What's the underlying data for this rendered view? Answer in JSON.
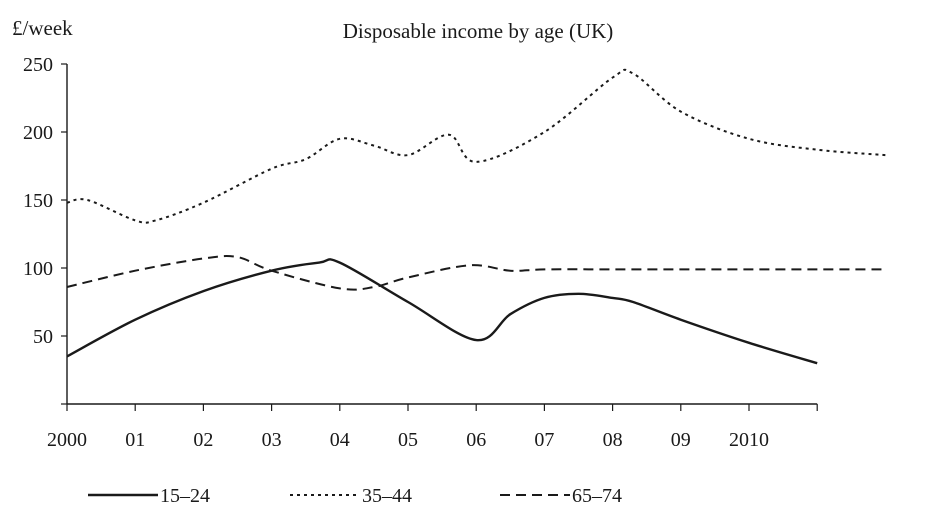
{
  "chart_data": {
    "type": "line",
    "title": "Disposable income by age (UK)",
    "ylabel": "£/week",
    "xlabel": "",
    "ylim": [
      0,
      250
    ],
    "xlim": [
      2000,
      2012
    ],
    "y_ticks": [
      50,
      100,
      150,
      200,
      250
    ],
    "x_ticks": [
      {
        "value": 2000,
        "label": "2000"
      },
      {
        "value": 2001,
        "label": "01"
      },
      {
        "value": 2002,
        "label": "02"
      },
      {
        "value": 2003,
        "label": "03"
      },
      {
        "value": 2004,
        "label": "04"
      },
      {
        "value": 2005,
        "label": "05"
      },
      {
        "value": 2006,
        "label": "06"
      },
      {
        "value": 2007,
        "label": "07"
      },
      {
        "value": 2008,
        "label": "08"
      },
      {
        "value": 2009,
        "label": "09"
      },
      {
        "value": 2010,
        "label": "2010"
      },
      {
        "value": 2011,
        "label": ""
      }
    ],
    "grid": false,
    "legend_position": "bottom",
    "series": [
      {
        "name": "15–24",
        "style": "solid",
        "color": "#1a1a1a",
        "x": [
          2000,
          2001,
          2002,
          2003,
          2003.7,
          2004,
          2005,
          2006,
          2006.5,
          2007,
          2007.5,
          2008,
          2008.3,
          2009,
          2010,
          2011
        ],
        "y": [
          35,
          62,
          83,
          98,
          104,
          104,
          75,
          47,
          66,
          78,
          81,
          78,
          75,
          62,
          45,
          30
        ]
      },
      {
        "name": "35–44",
        "style": "dotted",
        "color": "#1a1a1a",
        "x": [
          2000,
          2000.3,
          2001,
          2001.3,
          2002,
          2003,
          2003.5,
          2004,
          2004.5,
          2005,
          2005.6,
          2006,
          2007,
          2008,
          2008.3,
          2009,
          2010,
          2011,
          2012
        ],
        "y": [
          148,
          150,
          135,
          135,
          148,
          173,
          180,
          195,
          190,
          183,
          198,
          178,
          200,
          240,
          243,
          215,
          195,
          187,
          183
        ]
      },
      {
        "name": "65–74",
        "style": "dashed",
        "color": "#1a1a1a",
        "x": [
          2000,
          2001,
          2002,
          2002.5,
          2003,
          2004,
          2004.5,
          2005,
          2005.9,
          2006.5,
          2007,
          2008,
          2009,
          2010,
          2011,
          2012
        ],
        "y": [
          86,
          98,
          107,
          108,
          98,
          85,
          86,
          93,
          102,
          98,
          99,
          99,
          99,
          99,
          99,
          99
        ]
      }
    ]
  }
}
